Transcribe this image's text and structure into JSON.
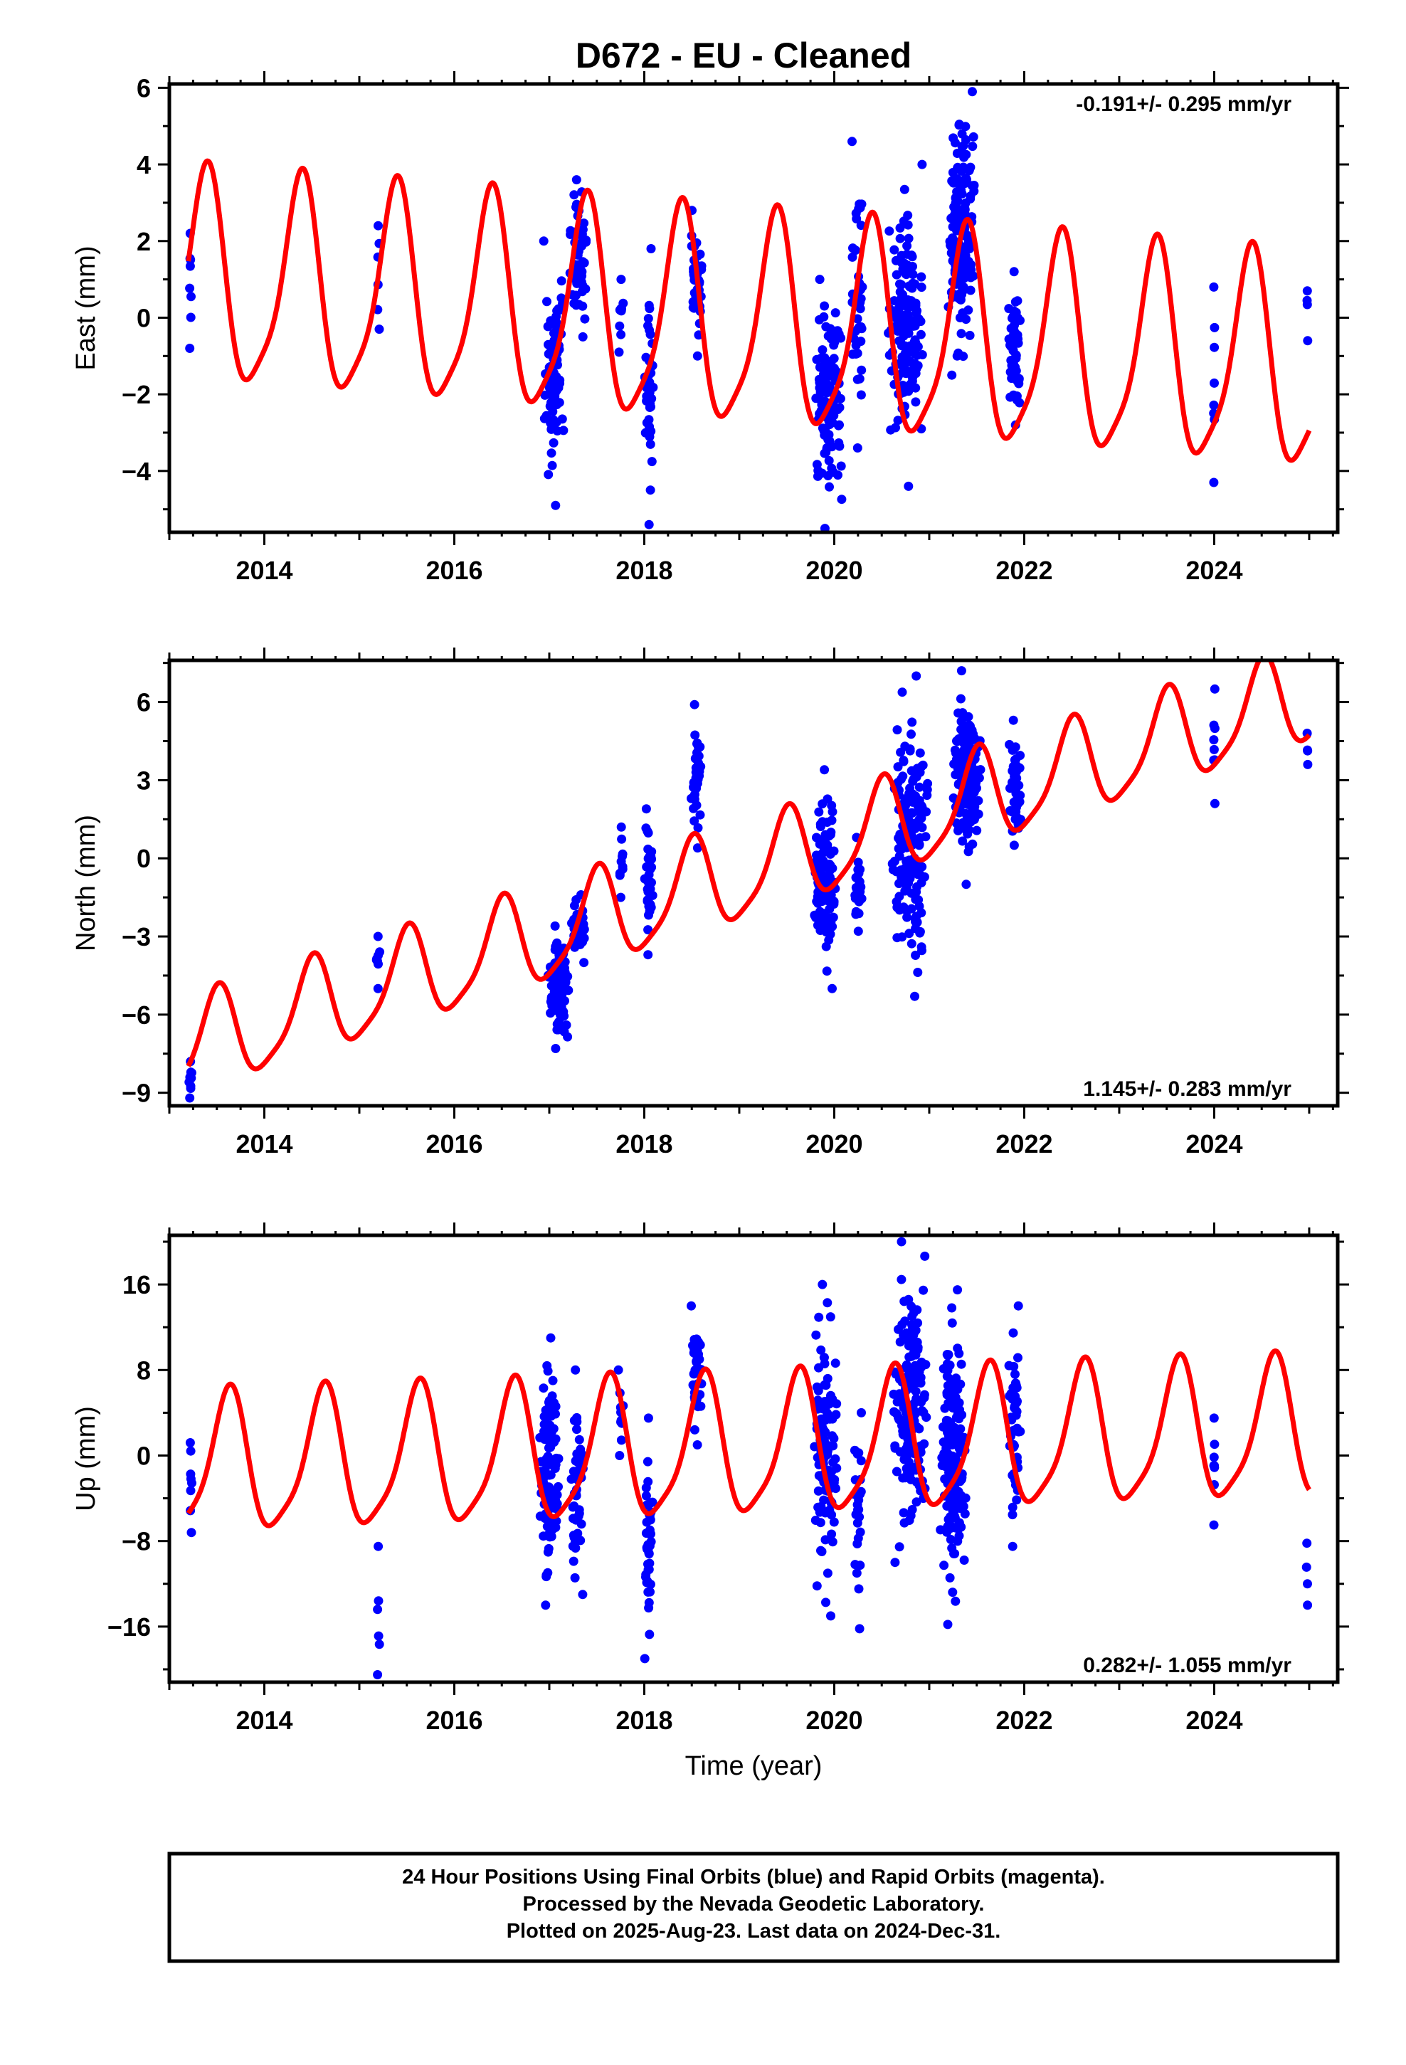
{
  "title": "D672  - EU - Cleaned",
  "colors": {
    "final_orbits": "#0000ff",
    "model_fit": "#ff0000",
    "axes": "#000000",
    "background": "#ffffff"
  },
  "footer": {
    "line1": "24 Hour Positions Using Final Orbits (blue) and Rapid Orbits (magenta).",
    "line2": "Processed by the Nevada Geodetic Laboratory.",
    "line3": "Plotted on 2025-Aug-23. Last data on 2024-Dec-31."
  },
  "chart_data": [
    {
      "type": "scatter",
      "ylabel": "East (mm)",
      "xlabel": "",
      "rate": "-0.191+/- 0.295 mm/yr",
      "rate_position": "top-right",
      "xlim": [
        2013.0,
        2025.3
      ],
      "ylim": [
        -5.6,
        6.1
      ],
      "xticks": [
        2014,
        2016,
        2018,
        2020,
        2022,
        2024
      ],
      "yticks": [
        -4,
        -2,
        0,
        2,
        4,
        6
      ],
      "model": {
        "x0": 2013.2,
        "trend": 0.9,
        "slope": -0.191,
        "amplitude": 2.7,
        "phase_peak": 0.38,
        "line_start": 2013.2,
        "line_end": 2025.0
      },
      "clusters": [
        {
          "center": 2013.22,
          "spread": 0.02,
          "count": 8,
          "ymin": -0.8,
          "ymax": 2.2
        },
        {
          "center": 2015.2,
          "spread": 0.02,
          "count": 6,
          "ymin": -0.3,
          "ymax": 2.4
        },
        {
          "center": 2017.05,
          "spread": 0.12,
          "count": 90,
          "ymin": -4.9,
          "ymax": 2.0
        },
        {
          "center": 2017.3,
          "spread": 0.1,
          "count": 60,
          "ymin": -0.5,
          "ymax": 3.6
        },
        {
          "center": 2017.75,
          "spread": 0.03,
          "count": 10,
          "ymin": -0.9,
          "ymax": 1.0
        },
        {
          "center": 2018.05,
          "spread": 0.05,
          "count": 40,
          "ymin": -5.4,
          "ymax": 1.8
        },
        {
          "center": 2018.55,
          "spread": 0.06,
          "count": 40,
          "ymin": -1.0,
          "ymax": 2.8
        },
        {
          "center": 2019.95,
          "spread": 0.15,
          "count": 130,
          "ymin": -5.5,
          "ymax": 1.0
        },
        {
          "center": 2020.25,
          "spread": 0.08,
          "count": 40,
          "ymin": -3.4,
          "ymax": 4.6
        },
        {
          "center": 2020.75,
          "spread": 0.2,
          "count": 160,
          "ymin": -4.4,
          "ymax": 4.0
        },
        {
          "center": 2021.35,
          "spread": 0.15,
          "count": 170,
          "ymin": -1.5,
          "ymax": 5.9
        },
        {
          "center": 2021.9,
          "spread": 0.07,
          "count": 50,
          "ymin": -2.8,
          "ymax": 1.2
        },
        {
          "center": 2024.0,
          "spread": 0.01,
          "count": 8,
          "ymin": -4.3,
          "ymax": 0.8
        },
        {
          "center": 2024.98,
          "spread": 0.01,
          "count": 4,
          "ymin": -0.6,
          "ymax": 0.7
        }
      ]
    },
    {
      "type": "scatter",
      "ylabel": "North (mm)",
      "xlabel": "",
      "rate": "1.145+/- 0.283 mm/yr",
      "rate_position": "bottom-right",
      "xlim": [
        2013.0,
        2025.3
      ],
      "ylim": [
        -9.5,
        7.6
      ],
      "xticks": [
        2014,
        2016,
        2018,
        2020,
        2022,
        2024
      ],
      "yticks": [
        -9,
        -6,
        -3,
        0,
        3,
        6
      ],
      "model": {
        "x0": 2013.2,
        "trend": -7.3,
        "slope": 1.145,
        "amplitude": 1.8,
        "phase_peak": 0.5,
        "line_start": 2013.2,
        "line_end": 2025.0
      },
      "clusters": [
        {
          "center": 2013.22,
          "spread": 0.02,
          "count": 10,
          "ymin": -9.2,
          "ymax": -7.8
        },
        {
          "center": 2015.2,
          "spread": 0.02,
          "count": 8,
          "ymin": -5.0,
          "ymax": -3.0
        },
        {
          "center": 2017.1,
          "spread": 0.12,
          "count": 110,
          "ymin": -7.3,
          "ymax": -2.6
        },
        {
          "center": 2017.3,
          "spread": 0.08,
          "count": 50,
          "ymin": -4.0,
          "ymax": -1.4
        },
        {
          "center": 2017.75,
          "spread": 0.03,
          "count": 10,
          "ymin": -1.5,
          "ymax": 1.2
        },
        {
          "center": 2018.05,
          "spread": 0.05,
          "count": 40,
          "ymin": -3.7,
          "ymax": 1.9
        },
        {
          "center": 2018.55,
          "spread": 0.06,
          "count": 40,
          "ymin": 0.4,
          "ymax": 5.9
        },
        {
          "center": 2019.9,
          "spread": 0.12,
          "count": 120,
          "ymin": -5.0,
          "ymax": 3.4
        },
        {
          "center": 2020.25,
          "spread": 0.05,
          "count": 25,
          "ymin": -2.8,
          "ymax": 0.8
        },
        {
          "center": 2020.8,
          "spread": 0.2,
          "count": 170,
          "ymin": -5.3,
          "ymax": 7.0
        },
        {
          "center": 2021.4,
          "spread": 0.15,
          "count": 170,
          "ymin": -1.0,
          "ymax": 7.2
        },
        {
          "center": 2021.9,
          "spread": 0.07,
          "count": 50,
          "ymin": 0.5,
          "ymax": 5.3
        },
        {
          "center": 2024.0,
          "spread": 0.01,
          "count": 8,
          "ymin": 2.1,
          "ymax": 6.5
        },
        {
          "center": 2024.98,
          "spread": 0.01,
          "count": 4,
          "ymin": 3.6,
          "ymax": 4.8
        }
      ]
    },
    {
      "type": "scatter",
      "ylabel": "Up (mm)",
      "xlabel": "Time (year)",
      "rate": "0.282+/- 1.055 mm/yr",
      "rate_position": "bottom-right",
      "xlim": [
        2013.0,
        2025.3
      ],
      "ylim": [
        -21.2,
        20.6
      ],
      "xticks": [
        2014,
        2016,
        2018,
        2020,
        2022,
        2024
      ],
      "yticks": [
        -16,
        -8,
        0,
        8,
        16
      ],
      "model": {
        "x0": 2013.2,
        "trend": -1.1,
        "slope": 0.282,
        "amplitude": 6.4,
        "phase_peak": 0.62,
        "line_start": 2013.2,
        "line_end": 2025.0
      },
      "clusters": [
        {
          "center": 2013.22,
          "spread": 0.02,
          "count": 8,
          "ymin": -7.2,
          "ymax": 1.2
        },
        {
          "center": 2015.2,
          "spread": 0.02,
          "count": 6,
          "ymin": -20.5,
          "ymax": -8.5
        },
        {
          "center": 2017.0,
          "spread": 0.12,
          "count": 110,
          "ymin": -14.0,
          "ymax": 11.0
        },
        {
          "center": 2017.3,
          "spread": 0.08,
          "count": 50,
          "ymin": -13.0,
          "ymax": 8.0
        },
        {
          "center": 2017.75,
          "spread": 0.03,
          "count": 10,
          "ymin": 0.0,
          "ymax": 8.0
        },
        {
          "center": 2018.05,
          "spread": 0.05,
          "count": 40,
          "ymin": -19.0,
          "ymax": 3.5
        },
        {
          "center": 2018.55,
          "spread": 0.06,
          "count": 40,
          "ymin": 1.0,
          "ymax": 14.0
        },
        {
          "center": 2019.9,
          "spread": 0.14,
          "count": 120,
          "ymin": -15.0,
          "ymax": 16.0
        },
        {
          "center": 2020.25,
          "spread": 0.05,
          "count": 25,
          "ymin": -16.2,
          "ymax": 4.0
        },
        {
          "center": 2020.8,
          "spread": 0.2,
          "count": 170,
          "ymin": -10.0,
          "ymax": 20.0
        },
        {
          "center": 2021.25,
          "spread": 0.15,
          "count": 160,
          "ymin": -15.8,
          "ymax": 15.5
        },
        {
          "center": 2021.9,
          "spread": 0.07,
          "count": 50,
          "ymin": -8.5,
          "ymax": 14.0
        },
        {
          "center": 2024.0,
          "spread": 0.01,
          "count": 8,
          "ymin": -6.5,
          "ymax": 3.5
        },
        {
          "center": 2024.98,
          "spread": 0.01,
          "count": 4,
          "ymin": -14.0,
          "ymax": -8.2
        }
      ]
    }
  ]
}
